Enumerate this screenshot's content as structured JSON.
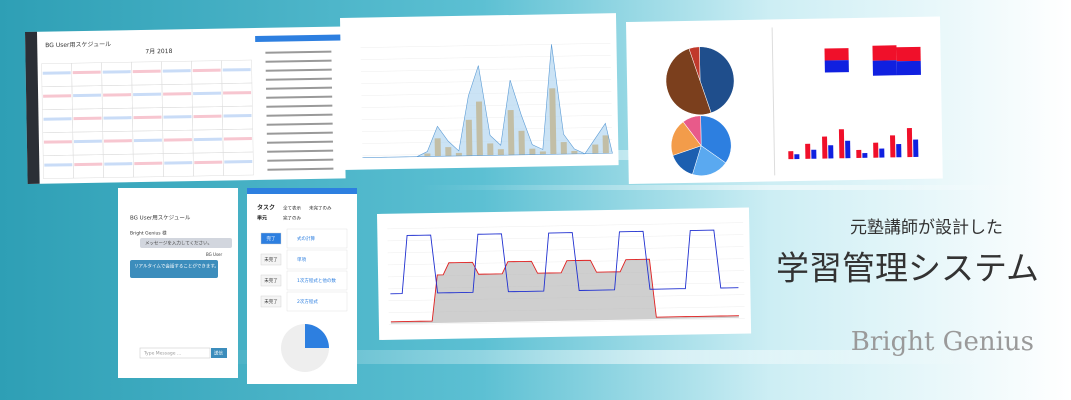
{
  "banner": {
    "tagline": "元塾講師が設計した",
    "title": "学習管理システム",
    "brand": "Bright Genius"
  },
  "calendar": {
    "title": "BG User用スケジュール",
    "month": "7月 2018"
  },
  "chat": {
    "title": "BG User用スケジュール",
    "sender": "Bright Genius 様",
    "message": "メッセージを入力してください。",
    "reply": "リアルタイムで会話することができます。",
    "user": "BG User",
    "input": "Type Message ...",
    "send": "送信"
  },
  "tasks": {
    "heading": "タスク",
    "subheading": "単元",
    "filters": [
      "全て表示",
      "未完了のみ",
      "完了のみ"
    ],
    "items": [
      {
        "status": "完了",
        "name": "式の計算"
      },
      {
        "status": "未完了",
        "name": "単項"
      },
      {
        "status": "未完了",
        "name": "1次方程式と他の数"
      },
      {
        "status": "未完了",
        "name": "2次方程式"
      }
    ]
  }
}
